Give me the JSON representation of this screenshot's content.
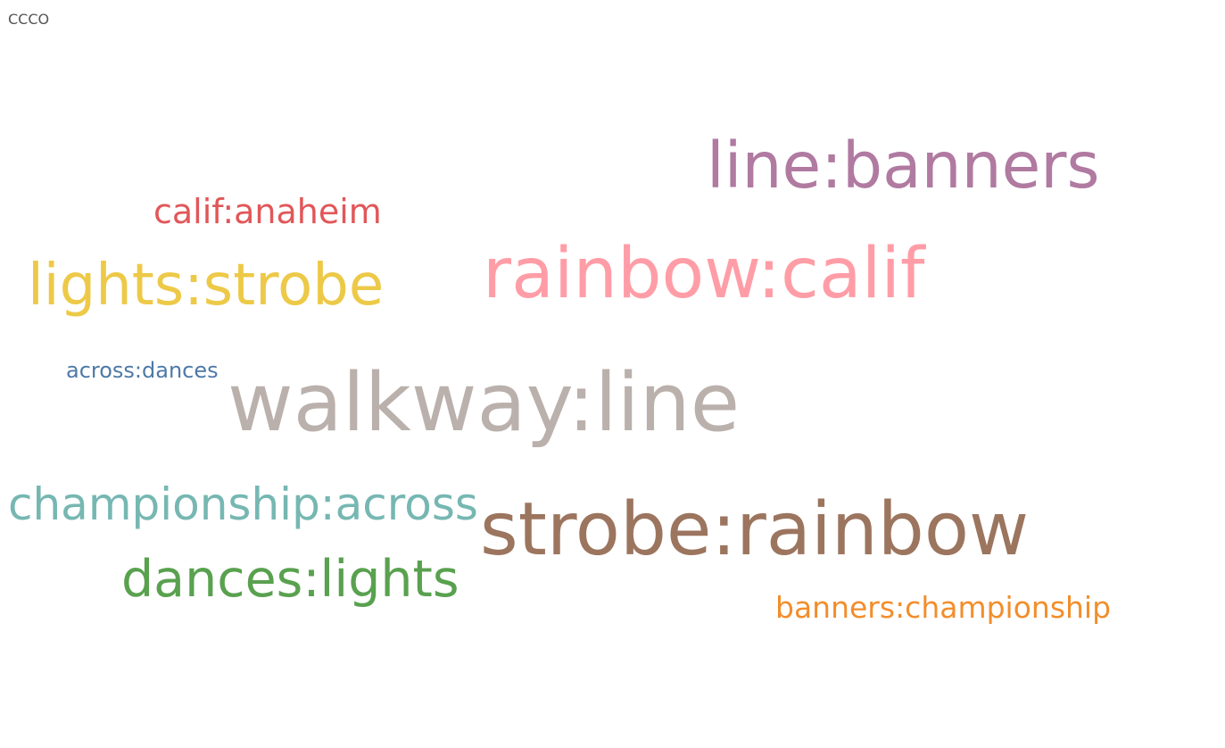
{
  "sheet": {
    "title": "CCCO"
  },
  "chart_data": {
    "type": "word_cloud",
    "words": [
      {
        "text": "walkway:line",
        "weight": 10,
        "color": "#bab0ac"
      },
      {
        "text": "strobe:rainbow",
        "weight": 9,
        "color": "#9c755f"
      },
      {
        "text": "rainbow:calif",
        "weight": 8,
        "color": "#ff9da7"
      },
      {
        "text": "line:banners",
        "weight": 7,
        "color": "#b07aa1"
      },
      {
        "text": "lights:strobe",
        "weight": 6,
        "color": "#edc948"
      },
      {
        "text": "dances:lights",
        "weight": 5,
        "color": "#59a14f"
      },
      {
        "text": "championship:across",
        "weight": 4,
        "color": "#76b7b2"
      },
      {
        "text": "calif:anaheim",
        "weight": 3,
        "color": "#e15759"
      },
      {
        "text": "banners:championship",
        "weight": 2,
        "color": "#f28e2b"
      },
      {
        "text": "across:dances",
        "weight": 1,
        "color": "#4e79a7"
      }
    ]
  }
}
